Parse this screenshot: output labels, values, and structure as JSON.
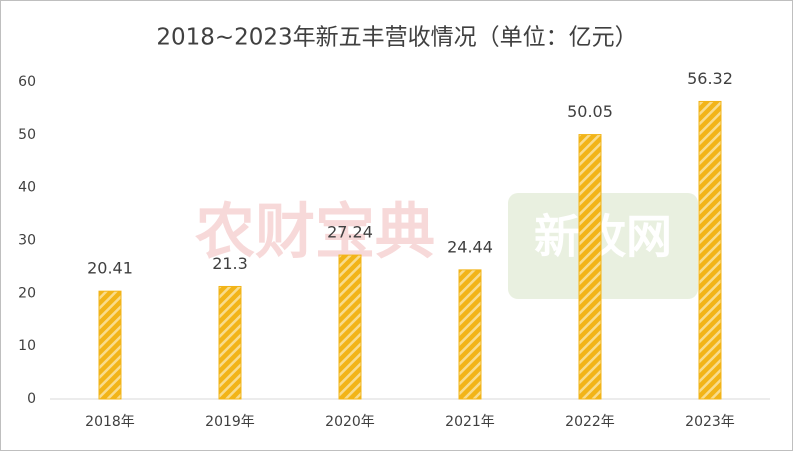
{
  "chart_data": {
    "type": "bar",
    "title": "2018~2023年新五丰营收情况（单位：亿元）",
    "categories": [
      "2018年",
      "2019年",
      "2020年",
      "2021年",
      "2022年",
      "2023年"
    ],
    "values": [
      20.41,
      21.3,
      27.24,
      24.44,
      50.05,
      56.32
    ],
    "color": "#f2b418",
    "ylim": [
      0,
      60
    ],
    "yticks": [
      0,
      10,
      20,
      30,
      40,
      50,
      60
    ],
    "grid": false,
    "watermarks": [
      "农财宝典",
      "新牧网"
    ]
  }
}
